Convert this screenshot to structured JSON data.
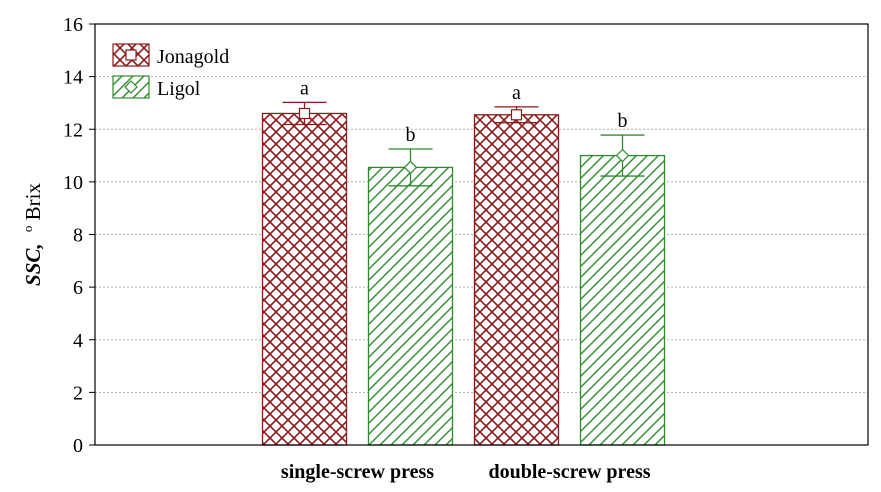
{
  "chart_data": {
    "type": "bar",
    "ylabel": {
      "var": "SSC,",
      "deg": "o",
      "unit": "Brix"
    },
    "xlabel": "",
    "categories": [
      "single-screw press",
      "double-screw press"
    ],
    "ylim": [
      0,
      16
    ],
    "yticks": [
      0,
      2,
      4,
      6,
      8,
      10,
      12,
      14,
      16
    ],
    "grid": true,
    "legend_position": "top-left",
    "series": [
      {
        "name": "Jonagold",
        "color": "#8b1a1a",
        "pattern": "crosshatch",
        "marker": "square",
        "values": [
          12.6,
          12.55
        ],
        "error": [
          0.42,
          0.3
        ],
        "letters": [
          "a",
          "a"
        ]
      },
      {
        "name": "Ligol",
        "color": "#2e8b2e",
        "pattern": "diagonal",
        "marker": "diamond",
        "values": [
          10.55,
          11.0
        ],
        "error": [
          0.7,
          0.78
        ],
        "letters": [
          "b",
          "b"
        ]
      }
    ]
  }
}
